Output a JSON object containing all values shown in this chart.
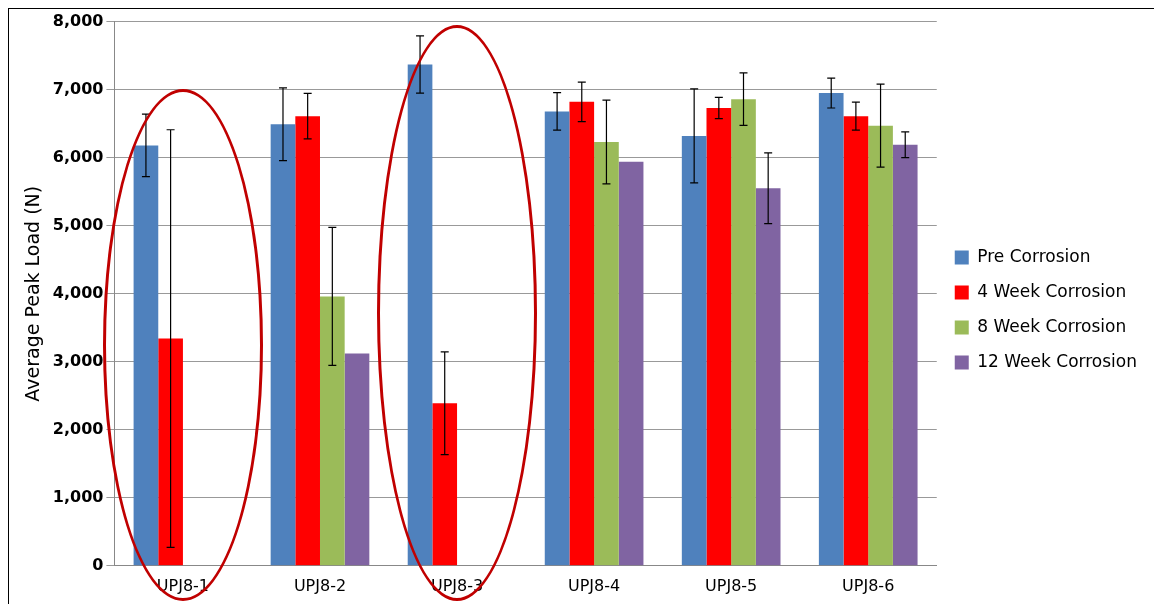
{
  "chart_data": {
    "type": "bar",
    "ylabel": "Average Peak Load (N)",
    "categories": [
      "UPJ8-1",
      "UPJ8-2",
      "UPJ8-3",
      "UPJ8-4",
      "UPJ8-5",
      "UPJ8-6"
    ],
    "series": [
      {
        "name": "Pre Corrosion",
        "color": "#4f81bd",
        "values": [
          6180,
          6490,
          7370,
          6680,
          6320,
          6950
        ],
        "errors": [
          460,
          535,
          420,
          275,
          690,
          220
        ]
      },
      {
        "name": "4 Week Corrosion",
        "color": "#ff0000",
        "values": [
          3340,
          6610,
          2390,
          6820,
          6730,
          6610
        ],
        "errors": [
          3070,
          335,
          755,
          290,
          155,
          205
        ]
      },
      {
        "name": "8 Week Corrosion",
        "color": "#9bbb59",
        "values": [
          null,
          3960,
          null,
          6230,
          6860,
          6470
        ],
        "errors": [
          null,
          1015,
          null,
          615,
          385,
          610
        ]
      },
      {
        "name": "12 Week Corrosion",
        "color": "#8064a2",
        "values": [
          null,
          3120,
          null,
          5940,
          5550,
          6190
        ],
        "errors": [
          null,
          null,
          null,
          null,
          520,
          190
        ]
      }
    ],
    "ylim": [
      0,
      8000
    ],
    "yticks": [
      0,
      {
        "value": 1000,
        "label": "1,000"
      },
      {
        "value": 2000,
        "label": "2,000"
      },
      {
        "value": 3000,
        "label": "3,000"
      },
      {
        "value": 4000,
        "label": "4,000"
      },
      {
        "value": 5000,
        "label": "5,000"
      },
      {
        "value": 6000,
        "label": "6,000"
      },
      {
        "value": 7000,
        "label": "7,000"
      },
      {
        "value": 8000,
        "label": "8,000"
      }
    ],
    "grid": "y",
    "legend": "right"
  }
}
